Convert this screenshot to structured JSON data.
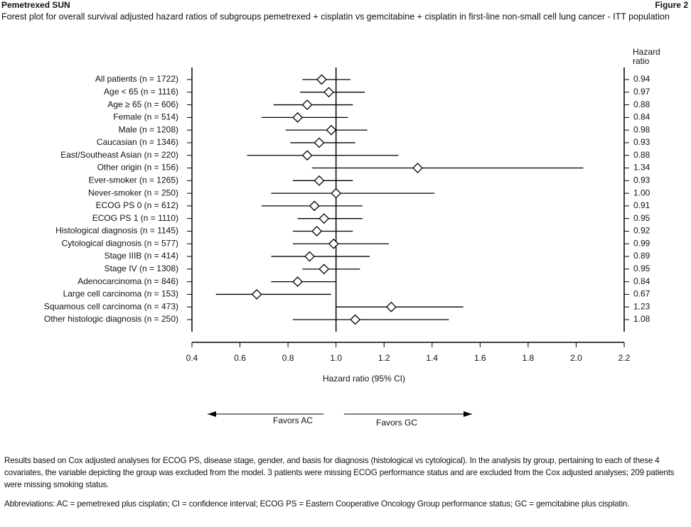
{
  "header": {
    "title": "Pemetrexed SUN",
    "figure_label": "Figure 2"
  },
  "chart_data": {
    "type": "forest",
    "subtitle": "Forest plot for overall survival adjusted hazard ratios of subgroups pemetrexed + cisplatin vs gemcitabine + cisplatin in first-line non-small cell lung cancer - ITT population",
    "value_column_title": "Hazard ratio",
    "x_label": "Hazard ratio (95% CI)",
    "categories": [
      "All patients (n = 1722)",
      "Age < 65 (n = 1116)",
      "Age ≥ 65 (n = 606)",
      "Female (n = 514)",
      "Male (n = 1208)",
      "Caucasian (n = 1346)",
      "East/Southeast Asian (n = 220)",
      "Other origin (n = 156)",
      "Ever-smoker (n = 1265)",
      "Never-smoker (n = 250)",
      "ECOG PS 0 (n = 612)",
      "ECOG PS 1 (n = 1110)",
      "Histological diagnosis (n = 1145)",
      "Cytological diagnosis (n = 577)",
      "Stage IIIB (n = 414)",
      "Stage IV (n = 1308)",
      "Adenocarcinoma (n = 846)",
      "Large cell carcinoma (n = 153)",
      "Squamous cell carcinoma (n = 473)",
      "Other histologic diagnosis (n = 250)"
    ],
    "values": [
      0.94,
      0.97,
      0.88,
      0.84,
      0.98,
      0.93,
      0.88,
      1.34,
      0.93,
      1,
      0.91,
      0.95,
      0.92,
      0.99,
      0.89,
      0.95,
      0.84,
      0.67,
      1.23,
      1.08
    ],
    "value_labels": [
      "0.94",
      "0.97",
      "0.88",
      "0.84",
      "0.98",
      "0.93",
      "0.88",
      "1.34",
      "0.93",
      "1.00",
      "0.91",
      "0.95",
      "0.92",
      "0.99",
      "0.89",
      "0.95",
      "0.84",
      "0.67",
      "1.23",
      "1.08"
    ],
    "lower": [
      0.86,
      0.85,
      0.74,
      0.69,
      0.79,
      0.81,
      0.63,
      0.9,
      0.82,
      0.73,
      0.69,
      0.84,
      0.82,
      0.82,
      0.73,
      0.86,
      0.73,
      0.5,
      1,
      0.82
    ],
    "upper": [
      1.06,
      1.12,
      1.07,
      1.05,
      1.13,
      1.08,
      1.26,
      2.03,
      1.07,
      1.41,
      1.11,
      1.11,
      1.07,
      1.22,
      1.14,
      1.1,
      1,
      0.98,
      1.53,
      1.47
    ],
    "xlim": [
      0.4,
      2.2
    ],
    "xticks": [
      0.4,
      0.6,
      0.8,
      {
        "value": 1,
        "label": "1.0"
      },
      1.2,
      1.4,
      1.6,
      1.8,
      {
        "value": 2,
        "label": "2.0"
      },
      2.2
    ],
    "reference_line": 1,
    "color": "#000000",
    "annotations": [
      "Favors AC",
      "Favors GC"
    ]
  },
  "footnotes": [
    "Results based on Cox adjusted analyses for ECOG PS, disease stage, gender, and basis for diagnosis (histological vs cytological). In the analysis by group, pertaining to each of these 4 covariates, the variable depicting the group was excluded from the model. 3 patients were missing ECOG performance status and are excluded from the Cox adjusted analyses; 209 patients were missing smoking status.",
    "Abbreviations: AC = pemetrexed plus cisplatin; CI = confidence interval; ECOG PS = Eastern Cooperative Oncology Group performance status; GC = gemcitabine plus cisplatin."
  ]
}
